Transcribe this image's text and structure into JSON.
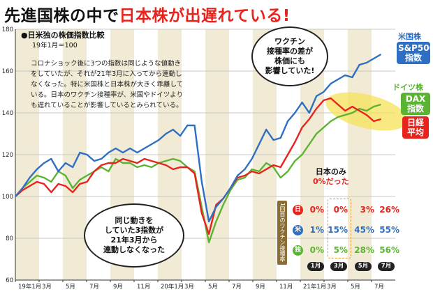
{
  "title": {
    "part1": "先進国株の中で",
    "part2": "日本株が出遅れている!"
  },
  "subtitle": "●日米独の株価指数比較",
  "subnote": "19年1月＝100",
  "description": "コロナショック後に3つの指数は同じような値動きをしていたが、それが21年3月に入ってから連動しなくなった。特に米国株と日本株が大きく乖離している。日本のワクチン接種率が、米国やドイツよりも遅れていることが影響しているとみられている。",
  "bubble_top": [
    "ワクチン",
    "接種率の差が",
    "株価にも",
    "影響していた!"
  ],
  "bubble_bottom": [
    "同じ動きを",
    "していた3指数が",
    "21年3月から",
    "連動しなくなった"
  ],
  "legend": {
    "us": {
      "tag": "米国株",
      "box": [
        "S&P500",
        "指数"
      ],
      "color": "#2e6fc4"
    },
    "de": {
      "tag": "ドイツ株",
      "box": [
        "DAX",
        "指数"
      ],
      "color": "#5bb431"
    },
    "jp": {
      "box": [
        "日経",
        "平均"
      ],
      "color": "#e8231d"
    }
  },
  "vaccine": {
    "note_line1": "日本のみ",
    "note_line2": "0%だった",
    "axis_label": "1回目のワクチン接種率",
    "rows": [
      {
        "label": "日",
        "color": "#e8231d",
        "values": [
          "0%",
          "0%",
          "3%",
          "26%"
        ]
      },
      {
        "label": "米",
        "color": "#2e6fc4",
        "values": [
          "1%",
          "15%",
          "45%",
          "55%"
        ]
      },
      {
        "label": "独",
        "color": "#5bb431",
        "values": [
          "0%",
          "5%",
          "28%",
          "56%"
        ]
      }
    ],
    "months": [
      "1月",
      "3月",
      "5月",
      "7月"
    ]
  },
  "chart_data": {
    "type": "line",
    "ylim": [
      60,
      180
    ],
    "yticks": [
      60,
      80,
      100,
      120,
      140,
      160,
      180
    ],
    "grid": true,
    "xlabels": [
      "19年1月",
      "3月",
      "5月",
      "7月",
      "9月",
      "11月",
      "20年1月",
      "3月",
      "5月",
      "7月",
      "9月",
      "11月",
      "21年1月",
      "3月",
      "5月",
      "7月"
    ],
    "series": [
      {
        "name": "S&P500指数",
        "color": "#2e6fc4",
        "values": [
          [
            0,
            100
          ],
          [
            1,
            104
          ],
          [
            2,
            109
          ],
          [
            3,
            113
          ],
          [
            4,
            116
          ],
          [
            5,
            118
          ],
          [
            6,
            112
          ],
          [
            7,
            116
          ],
          [
            8,
            114
          ],
          [
            9,
            121
          ],
          [
            10,
            120
          ],
          [
            11,
            117
          ],
          [
            12,
            118
          ],
          [
            13,
            121
          ],
          [
            14,
            123
          ],
          [
            15,
            121
          ],
          [
            16,
            123
          ],
          [
            17,
            121
          ],
          [
            18,
            123
          ],
          [
            19,
            125
          ],
          [
            20,
            127
          ],
          [
            21,
            130
          ],
          [
            22,
            132
          ],
          [
            23,
            129
          ],
          [
            24,
            134
          ],
          [
            25,
            134
          ],
          [
            26,
            107
          ],
          [
            27,
            88
          ],
          [
            28,
            95
          ],
          [
            29,
            99
          ],
          [
            30,
            104
          ],
          [
            31,
            110
          ],
          [
            32,
            113
          ],
          [
            33,
            118
          ],
          [
            34,
            125
          ],
          [
            35,
            132
          ],
          [
            36,
            127
          ],
          [
            37,
            128
          ],
          [
            38,
            136
          ],
          [
            39,
            140
          ],
          [
            40,
            145
          ],
          [
            41,
            140
          ],
          [
            42,
            148
          ],
          [
            43,
            150
          ],
          [
            44,
            154
          ],
          [
            45,
            156
          ],
          [
            46,
            158
          ],
          [
            47,
            157
          ],
          [
            48,
            163
          ],
          [
            49,
            164
          ],
          [
            50,
            166
          ],
          [
            51,
            168
          ]
        ]
      },
      {
        "name": "日経平均",
        "color": "#e8231d",
        "values": [
          [
            0,
            100
          ],
          [
            1,
            103
          ],
          [
            2,
            105
          ],
          [
            3,
            107
          ],
          [
            4,
            106
          ],
          [
            5,
            102
          ],
          [
            6,
            106
          ],
          [
            7,
            105
          ],
          [
            8,
            102
          ],
          [
            9,
            106
          ],
          [
            10,
            107
          ],
          [
            11,
            112
          ],
          [
            12,
            115
          ],
          [
            13,
            116
          ],
          [
            14,
            116
          ],
          [
            15,
            118
          ],
          [
            16,
            117
          ],
          [
            17,
            116
          ],
          [
            18,
            118
          ],
          [
            19,
            117
          ],
          [
            20,
            116
          ],
          [
            21,
            115
          ],
          [
            22,
            113
          ],
          [
            23,
            114
          ],
          [
            24,
            114
          ],
          [
            25,
            111
          ],
          [
            26,
            92
          ],
          [
            27,
            82
          ],
          [
            28,
            96
          ],
          [
            29,
            99
          ],
          [
            30,
            104
          ],
          [
            31,
            109
          ],
          [
            32,
            110
          ],
          [
            33,
            112
          ],
          [
            34,
            111
          ],
          [
            35,
            113
          ],
          [
            36,
            115
          ],
          [
            37,
            114
          ],
          [
            38,
            120
          ],
          [
            39,
            126
          ],
          [
            40,
            133
          ],
          [
            41,
            137
          ],
          [
            42,
            142
          ],
          [
            43,
            146
          ],
          [
            44,
            147
          ],
          [
            45,
            144
          ],
          [
            46,
            141
          ],
          [
            47,
            143
          ],
          [
            48,
            141
          ],
          [
            49,
            139
          ],
          [
            50,
            136
          ],
          [
            51,
            137
          ]
        ]
      },
      {
        "name": "DAX指数",
        "color": "#5bb431",
        "values": [
          [
            0,
            100
          ],
          [
            1,
            104
          ],
          [
            2,
            107
          ],
          [
            3,
            110
          ],
          [
            4,
            109
          ],
          [
            5,
            107
          ],
          [
            6,
            112
          ],
          [
            7,
            110
          ],
          [
            8,
            104
          ],
          [
            9,
            108
          ],
          [
            10,
            110
          ],
          [
            11,
            112
          ],
          [
            12,
            114
          ],
          [
            13,
            112
          ],
          [
            14,
            118
          ],
          [
            15,
            116
          ],
          [
            16,
            116
          ],
          [
            17,
            114
          ],
          [
            18,
            115
          ],
          [
            19,
            114
          ],
          [
            20,
            116
          ],
          [
            21,
            117
          ],
          [
            22,
            118
          ],
          [
            23,
            117
          ],
          [
            24,
            114
          ],
          [
            25,
            112
          ],
          [
            26,
            95
          ],
          [
            27,
            78
          ],
          [
            28,
            88
          ],
          [
            29,
            96
          ],
          [
            30,
            103
          ],
          [
            31,
            108
          ],
          [
            32,
            109
          ],
          [
            33,
            113
          ],
          [
            34,
            112
          ],
          [
            35,
            116
          ],
          [
            36,
            114
          ],
          [
            37,
            109
          ],
          [
            38,
            112
          ],
          [
            39,
            117
          ],
          [
            40,
            120
          ],
          [
            41,
            125
          ],
          [
            42,
            130
          ],
          [
            43,
            133
          ],
          [
            44,
            136
          ],
          [
            45,
            138
          ],
          [
            46,
            139
          ],
          [
            47,
            140
          ],
          [
            48,
            142
          ],
          [
            49,
            141
          ],
          [
            50,
            143
          ],
          [
            51,
            144
          ]
        ]
      }
    ]
  }
}
